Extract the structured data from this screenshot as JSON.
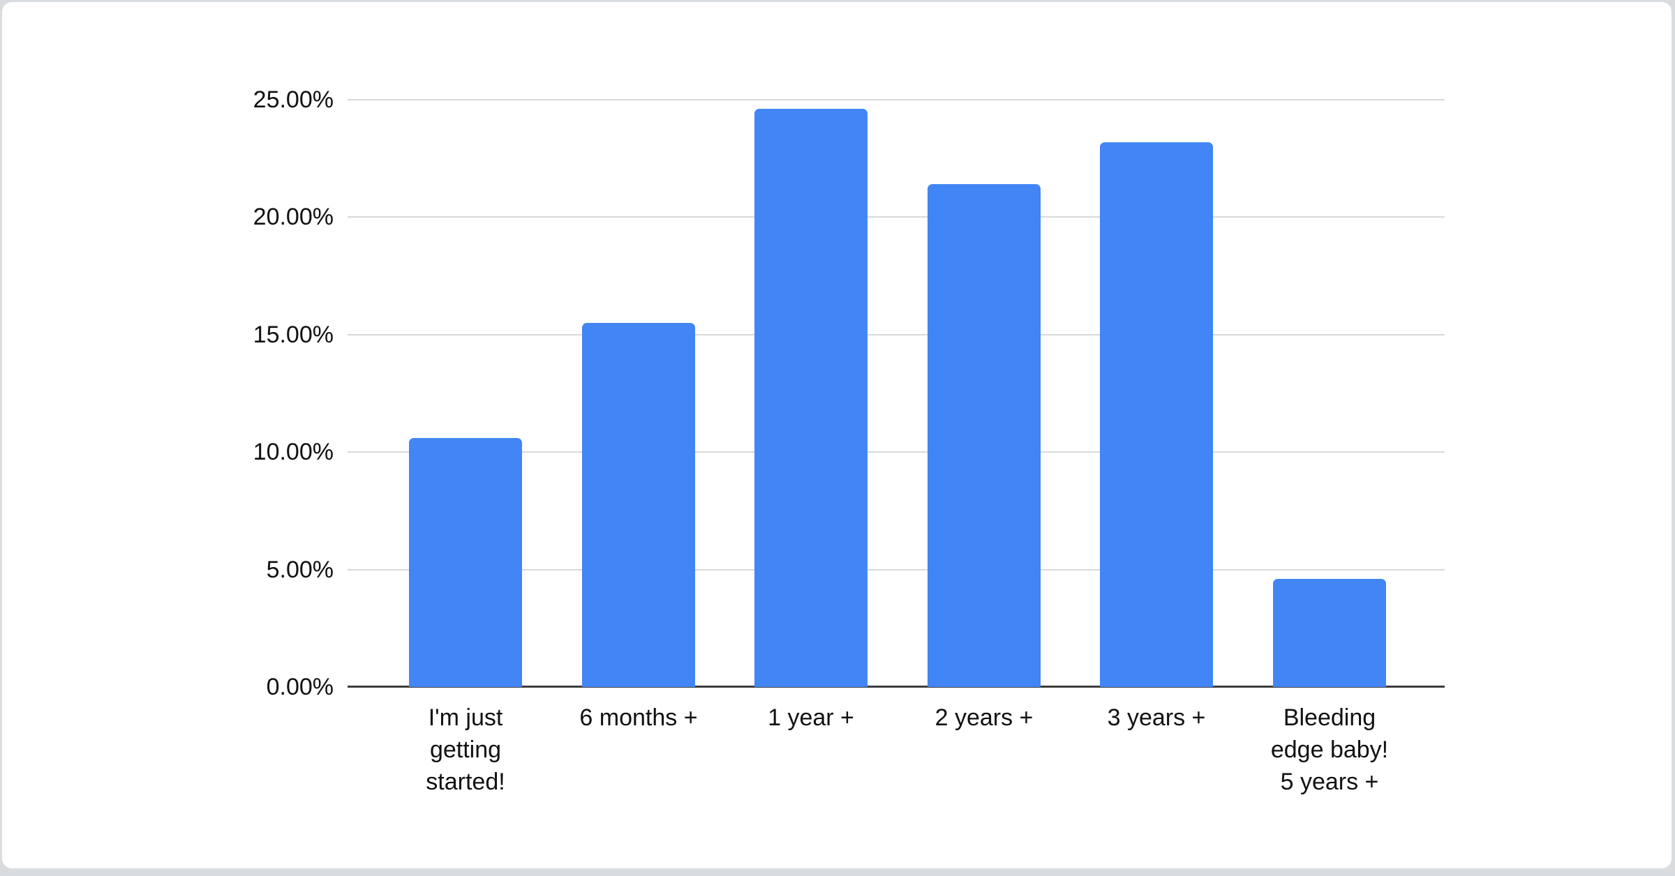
{
  "page": {
    "background_color": "#d9dcdf",
    "card_background": "#ffffff",
    "card_border_color": "#dadde1"
  },
  "chart_data": {
    "type": "bar",
    "title": "",
    "xlabel": "",
    "ylabel": "",
    "unit": "%",
    "categories": [
      "I'm just getting started!",
      "6 months +",
      "1 year +",
      "2 years +",
      "3 years +",
      "Bleeding edge baby! 5 years +"
    ],
    "category_display_lines": [
      [
        "I'm just",
        "getting",
        "started!"
      ],
      [
        "6 months +"
      ],
      [
        "1 year +"
      ],
      [
        "2 years +"
      ],
      [
        "3 years +"
      ],
      [
        "Bleeding",
        "edge baby!",
        "5 years +"
      ]
    ],
    "values": [
      10.6,
      15.5,
      24.6,
      21.4,
      23.2,
      4.6
    ],
    "ylim": [
      0,
      25
    ],
    "y_ticks": [
      {
        "value": 25,
        "label": "25.00%"
      },
      {
        "value": 20,
        "label": "20.00%"
      },
      {
        "value": 15,
        "label": "15.00%"
      },
      {
        "value": 10,
        "label": "10.00%"
      },
      {
        "value": 5,
        "label": "5.00%"
      },
      {
        "value": 0,
        "label": "0.00%"
      }
    ],
    "grid": true,
    "legend_position": "none",
    "bar_color": "#4285f4",
    "gridline_color": "#d9d9d9",
    "axis_line_color": "#3c3c3c",
    "text_color": "#111111"
  }
}
